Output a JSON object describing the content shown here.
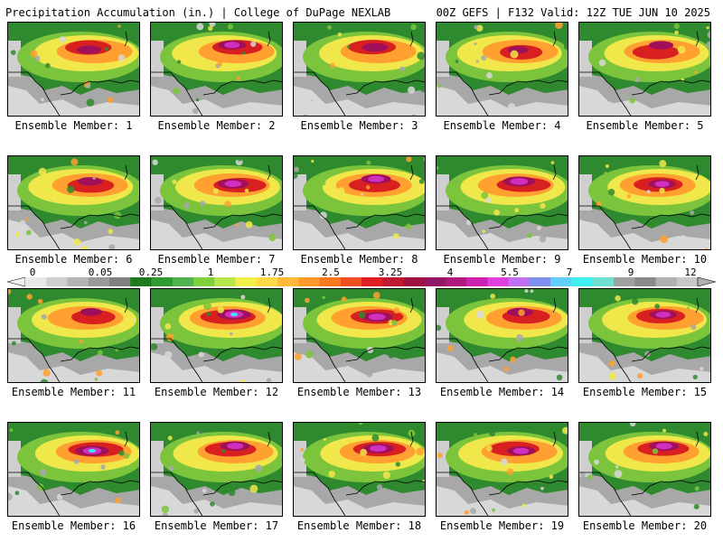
{
  "header": {
    "title": "Precipitation Accumulation (in.) | College of DuPage NEXLAB",
    "run_info": "00Z GEFS | F132 Valid: 12Z TUE JUN 10 2025"
  },
  "panels": [
    {
      "label": "Ensemble Member: 1",
      "intensity": 0.55
    },
    {
      "label": "Ensemble Member: 2",
      "intensity": 0.7
    },
    {
      "label": "Ensemble Member: 3",
      "intensity": 0.6
    },
    {
      "label": "Ensemble Member: 4",
      "intensity": 0.4
    },
    {
      "label": "Ensemble Member: 5",
      "intensity": 0.55
    },
    {
      "label": "Ensemble Member: 6",
      "intensity": 0.55
    },
    {
      "label": "Ensemble Member: 7",
      "intensity": 0.8
    },
    {
      "label": "Ensemble Member: 8",
      "intensity": 0.75
    },
    {
      "label": "Ensemble Member: 9",
      "intensity": 0.85
    },
    {
      "label": "Ensemble Member: 10",
      "intensity": 0.65
    },
    {
      "label": "Ensemble Member: 11",
      "intensity": 0.45
    },
    {
      "label": "Ensemble Member: 12",
      "intensity": 0.9
    },
    {
      "label": "Ensemble Member: 13",
      "intensity": 0.8
    },
    {
      "label": "Ensemble Member: 14",
      "intensity": 0.6
    },
    {
      "label": "Ensemble Member: 15",
      "intensity": 0.65
    },
    {
      "label": "Ensemble Member: 16",
      "intensity": 0.9
    },
    {
      "label": "Ensemble Member: 17",
      "intensity": 0.75
    },
    {
      "label": "Ensemble Member: 18",
      "intensity": 0.8
    },
    {
      "label": "Ensemble Member: 19",
      "intensity": 0.7
    },
    {
      "label": "Ensemble Member: 20",
      "intensity": 0.75
    }
  ],
  "colorbar": {
    "labels": [
      "0",
      "0.05",
      "0.25",
      "1",
      "1.75",
      "2.5",
      "3.25",
      "4",
      "5.5",
      "7",
      "9",
      "12"
    ],
    "colors": [
      "#e8e8e8",
      "#cfcfcf",
      "#b4b4b4",
      "#9a9a9a",
      "#808080",
      "#1f7a1f",
      "#2f9a2f",
      "#4fb44f",
      "#7fcf3f",
      "#b8e64a",
      "#f0f04a",
      "#ffd84a",
      "#ffb83a",
      "#ff9a2a",
      "#ff7a1f",
      "#f0501f",
      "#e02020",
      "#c01830",
      "#a01040",
      "#901860",
      "#b01880",
      "#d020b0",
      "#e040e0",
      "#c070f0",
      "#8090f0",
      "#60d0f8",
      "#40f0f0",
      "#70e0d0",
      "#a0a0a0",
      "#8a8a8a",
      "#b0b0b0",
      "#c8c8c8"
    ]
  }
}
